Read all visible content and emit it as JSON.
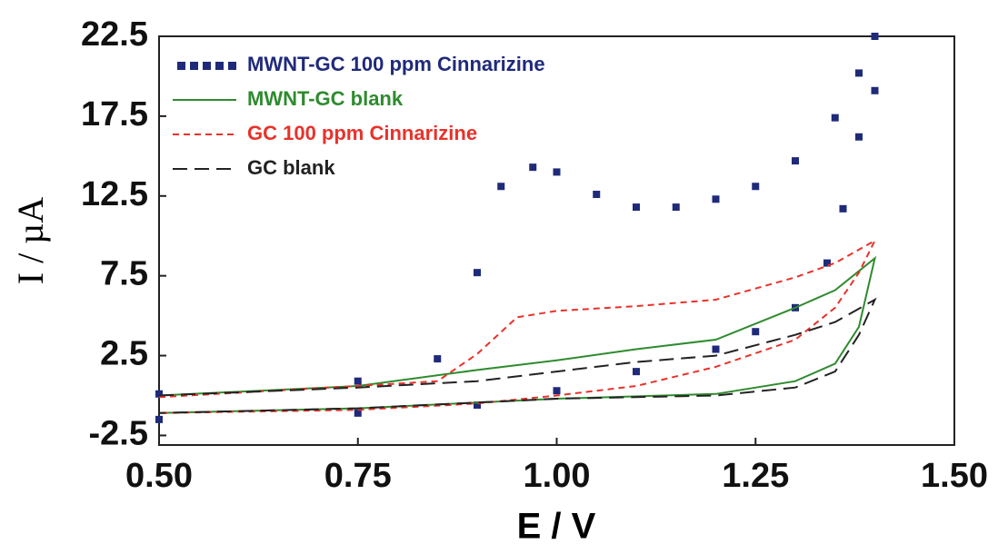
{
  "chart_data": {
    "type": "line",
    "x_label": "E / V",
    "y_label": "I / µA",
    "xlim": [
      0.5,
      1.5
    ],
    "ylim": [
      -3.1,
      22.5
    ],
    "xticks": [
      {
        "value": 0.5,
        "label": "0.50"
      },
      {
        "value": 0.75,
        "label": "0.75"
      },
      {
        "value": 1.0,
        "label": "1.00"
      },
      {
        "value": 1.25,
        "label": "1.25"
      },
      {
        "value": 1.5,
        "label": "1.50"
      }
    ],
    "yticks": [
      -2.5,
      2.5,
      7.5,
      12.5,
      17.5,
      22.5
    ],
    "legend": "upper left",
    "series": [
      {
        "name": "MWNT-GC 100 ppm Cinnarizine",
        "color": "#1f2a7a",
        "line_style": "squares",
        "x": [
          0.5,
          0.75,
          0.85,
          0.9,
          0.93,
          0.97,
          1.0,
          1.05,
          1.1,
          1.15,
          1.2,
          1.25,
          1.3,
          1.35,
          1.38,
          1.4,
          1.4,
          1.38,
          1.36,
          1.34,
          1.3,
          1.25,
          1.2,
          1.1,
          1.0,
          0.9,
          0.75,
          0.5
        ],
        "values": [
          0.1,
          0.9,
          2.3,
          7.7,
          13.1,
          14.3,
          14.0,
          12.6,
          11.8,
          11.8,
          12.3,
          13.1,
          14.7,
          17.4,
          20.2,
          22.5,
          19.1,
          16.2,
          11.7,
          8.3,
          5.5,
          4.0,
          2.9,
          1.5,
          0.3,
          -0.6,
          -1.1,
          -1.5
        ]
      },
      {
        "name": "MWNT-GC blank",
        "color": "#2e8b2e",
        "line_style": "solid",
        "x": [
          0.5,
          0.75,
          0.9,
          1.0,
          1.1,
          1.2,
          1.3,
          1.35,
          1.4,
          1.38,
          1.35,
          1.3,
          1.2,
          1.0,
          0.75,
          0.5
        ],
        "values": [
          0.0,
          0.6,
          1.6,
          2.2,
          2.9,
          3.5,
          5.5,
          6.6,
          8.6,
          4.3,
          2.0,
          0.9,
          0.1,
          -0.2,
          -0.8,
          -1.1
        ]
      },
      {
        "name": "GC 100 ppm Cinnarizine",
        "color": "#e8322a",
        "line_style": "dashed",
        "x": [
          0.5,
          0.75,
          0.85,
          0.9,
          0.95,
          1.0,
          1.1,
          1.2,
          1.3,
          1.35,
          1.4,
          1.38,
          1.35,
          1.3,
          1.2,
          1.1,
          1.0,
          0.9,
          0.75,
          0.5
        ],
        "values": [
          -0.1,
          0.6,
          0.9,
          2.6,
          4.9,
          5.3,
          5.6,
          6.0,
          7.4,
          8.3,
          9.7,
          7.7,
          5.5,
          3.5,
          1.8,
          0.6,
          0.0,
          -0.5,
          -0.9,
          -1.1
        ]
      },
      {
        "name": "GC blank",
        "color": "#222222",
        "line_style": "long-dashed",
        "x": [
          0.5,
          0.75,
          0.9,
          1.0,
          1.1,
          1.2,
          1.3,
          1.35,
          1.4,
          1.38,
          1.35,
          1.3,
          1.2,
          1.0,
          0.75,
          0.5
        ],
        "values": [
          0.0,
          0.5,
          0.9,
          1.5,
          2.1,
          2.5,
          3.8,
          4.6,
          6.0,
          3.8,
          1.5,
          0.5,
          0.0,
          -0.2,
          -0.8,
          -1.1
        ]
      }
    ]
  }
}
